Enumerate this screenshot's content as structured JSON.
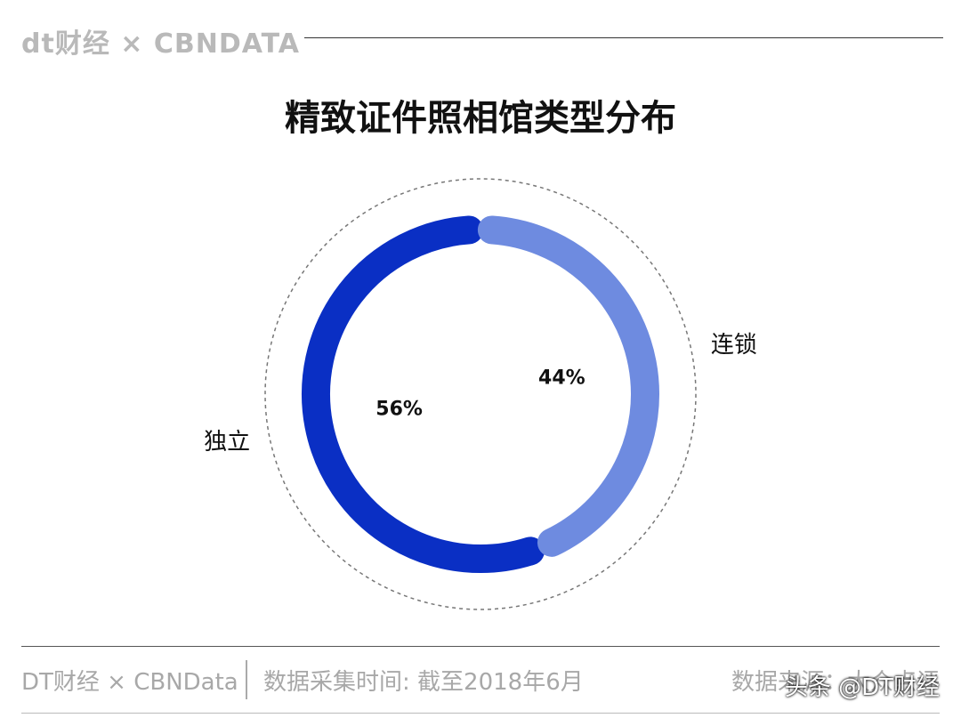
{
  "header": {
    "brand": "dt财经 × CBNDATA"
  },
  "chart_data": {
    "type": "pie",
    "title": "精致证件照相馆类型分布",
    "categories": [
      "独立",
      "连锁"
    ],
    "values": [
      56,
      44
    ],
    "value_labels": [
      "56%",
      "44%"
    ],
    "colors": [
      "#0a2fc4",
      "#6e8be0"
    ],
    "legend": "none"
  },
  "footer": {
    "brand": "DT财经 × CBNData",
    "collection_time": "数据采集时间: 截至2018年6月",
    "source": "数据来源：大众点评"
  },
  "watermark": "头条 @DT财经"
}
